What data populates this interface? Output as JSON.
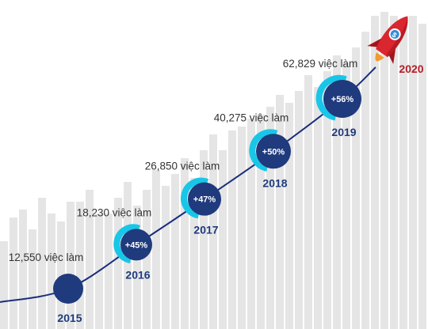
{
  "chart_data": {
    "type": "line",
    "x": [
      "2015",
      "2016",
      "2017",
      "2018",
      "2019"
    ],
    "values": [
      12550,
      18230,
      26850,
      40275,
      62829
    ],
    "value_labels": [
      "12,550 việc làm",
      "18,230 việc làm",
      "26,850 việc làm",
      "40,275 việc làm",
      "62,829 việc làm"
    ],
    "growth_labels": [
      "",
      "+45%",
      "+47%",
      "+50%",
      "+56%"
    ],
    "final_year": "2020",
    "colors": {
      "line": "#1a2f7a",
      "marker": "#1f3a7d",
      "ring": "#18c6e8",
      "bars": "#e5e5e5",
      "final_year": "#b3202a"
    },
    "background_bars_decorative": true,
    "rocket_icon": "rocket-icon"
  }
}
